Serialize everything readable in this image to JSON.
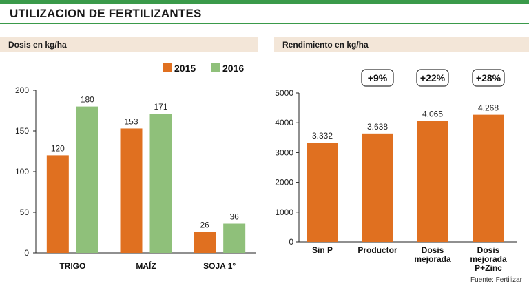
{
  "header": {
    "title": "UTILIZACION DE FERTILIZANTES",
    "source": "Fuente: Fertilizar"
  },
  "colors": {
    "accent_green": "#3a9a4a",
    "series_2015": "#e07020",
    "series_2016": "#8fc07a",
    "panel_header_bg": "#f3e6d8"
  },
  "chart_data": [
    {
      "type": "bar",
      "title": "Dosis en kg/ha",
      "categories": [
        "TRIGO",
        "MAÍZ",
        "SOJA 1°"
      ],
      "series": [
        {
          "name": "2015",
          "values": [
            120,
            153,
            26
          ],
          "labels": [
            "120",
            "153",
            "26"
          ],
          "color": "#e07020"
        },
        {
          "name": "2016",
          "values": [
            180,
            171,
            36
          ],
          "labels": [
            "180",
            "171",
            "36"
          ],
          "color": "#8fc07a"
        }
      ],
      "yticks": [
        "0",
        "50",
        "100",
        "150",
        "200"
      ],
      "ylim": [
        0,
        200
      ],
      "grid": false,
      "legend_position": "top-right"
    },
    {
      "type": "bar",
      "title": "Rendimiento en kg/ha",
      "categories": [
        [
          "Sin P"
        ],
        [
          "Productor"
        ],
        [
          "Dosis",
          "mejorada"
        ],
        [
          "Dosis",
          "mejorada",
          "P+Zinc"
        ]
      ],
      "values": [
        3332,
        3638,
        4065,
        4268
      ],
      "value_labels": [
        "3.332",
        "3.638",
        "4.065",
        "4.268"
      ],
      "annotations": [
        "",
        "+9%",
        "+22%",
        "+28%"
      ],
      "color": "#e07020",
      "yticks": [
        "0",
        "1000",
        "2000",
        "3000",
        "4000",
        "5000"
      ],
      "ylim": [
        0,
        5000
      ],
      "grid": false
    }
  ]
}
